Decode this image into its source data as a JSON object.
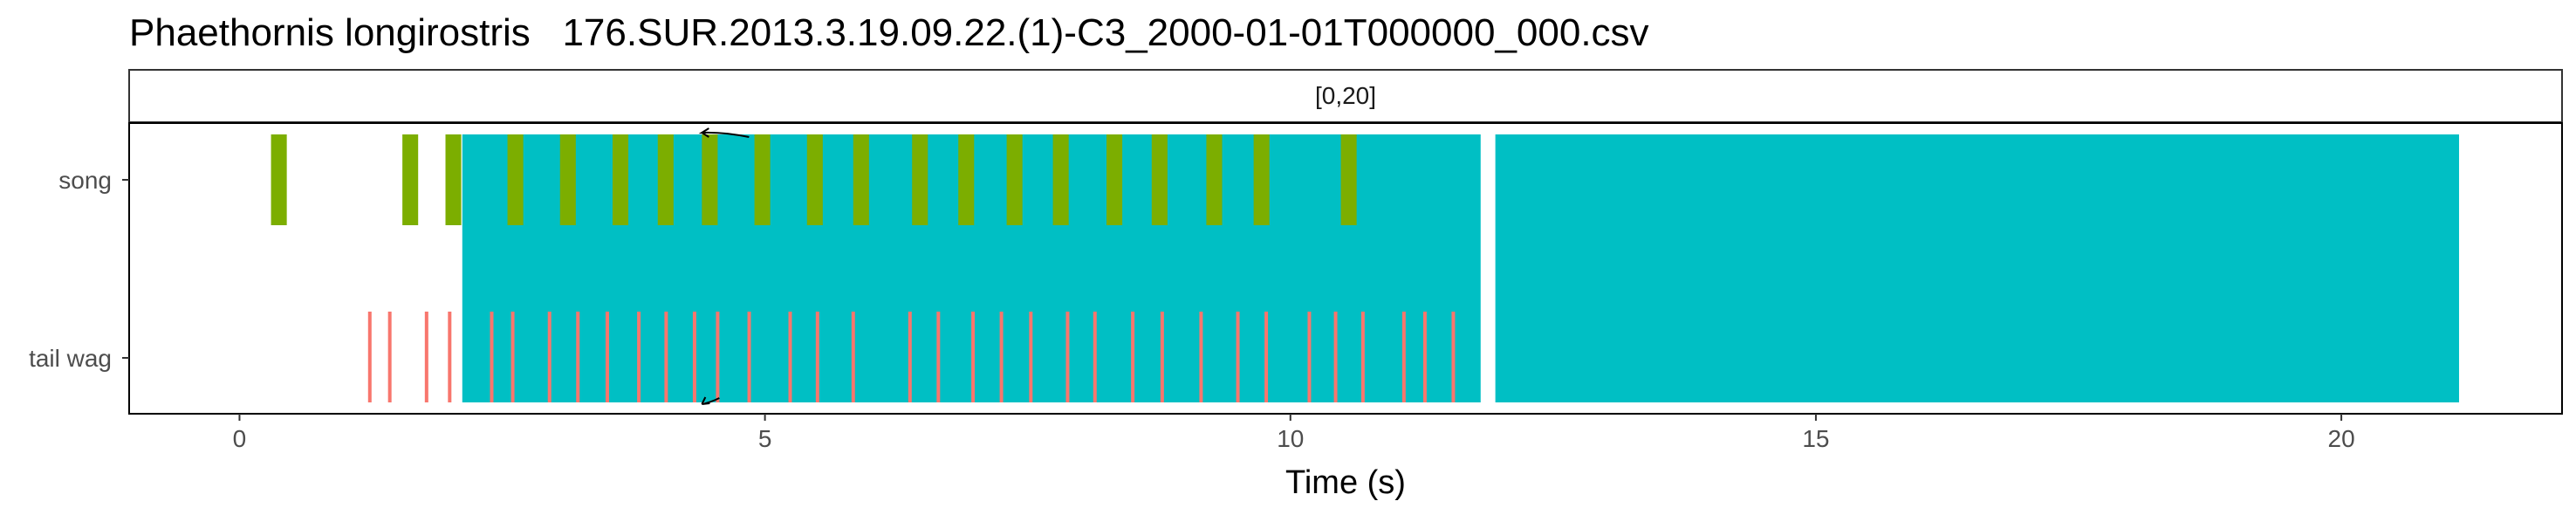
{
  "chart_data": {
    "type": "timeline",
    "title": "Phaethornis longirostris   176.SUR.2013.3.19.09.22.(1)-C3_2000-01-01T000000_000.csv",
    "facet_label": "[0,20]",
    "xlabel": "Time (s)",
    "ylabel": "",
    "xlim": [
      -1.05,
      22.1
    ],
    "x_ticks": [
      0,
      5,
      10,
      15,
      20
    ],
    "y_categories": [
      "song",
      "tail wag"
    ],
    "colors": {
      "song": "#7CAE00",
      "tail_wag": "#F8766D",
      "overlay": "#00BFC4",
      "arrow": "#000000"
    },
    "overlay_spans": [
      {
        "start": 2.12,
        "end": 11.81
      },
      {
        "start": 11.95,
        "end": 21.12
      }
    ],
    "song_events": [
      {
        "start": 0.3,
        "end": 0.45
      },
      {
        "start": 1.55,
        "end": 1.7
      },
      {
        "start": 1.96,
        "end": 2.11
      },
      {
        "start": 2.55,
        "end": 2.7
      },
      {
        "start": 3.05,
        "end": 3.2
      },
      {
        "start": 3.55,
        "end": 3.7
      },
      {
        "start": 3.98,
        "end": 4.13
      },
      {
        "start": 4.4,
        "end": 4.55
      },
      {
        "start": 4.9,
        "end": 5.05
      },
      {
        "start": 5.4,
        "end": 5.55
      },
      {
        "start": 5.84,
        "end": 5.99
      },
      {
        "start": 6.4,
        "end": 6.55
      },
      {
        "start": 6.84,
        "end": 6.99
      },
      {
        "start": 7.3,
        "end": 7.45
      },
      {
        "start": 7.74,
        "end": 7.89
      },
      {
        "start": 8.25,
        "end": 8.4
      },
      {
        "start": 8.68,
        "end": 8.83
      },
      {
        "start": 9.2,
        "end": 9.35
      },
      {
        "start": 9.65,
        "end": 9.8
      },
      {
        "start": 10.48,
        "end": 10.63
      }
    ],
    "tail_wag_events": [
      1.24,
      1.43,
      1.78,
      2.0,
      2.4,
      2.6,
      2.95,
      3.22,
      3.5,
      3.8,
      4.06,
      4.33,
      4.55,
      4.85,
      5.24,
      5.5,
      5.84,
      6.38,
      6.65,
      6.98,
      7.25,
      7.53,
      7.88,
      8.14,
      8.5,
      8.78,
      9.15,
      9.5,
      9.77,
      10.18,
      10.43,
      10.69,
      11.08,
      11.28,
      11.55
    ]
  }
}
